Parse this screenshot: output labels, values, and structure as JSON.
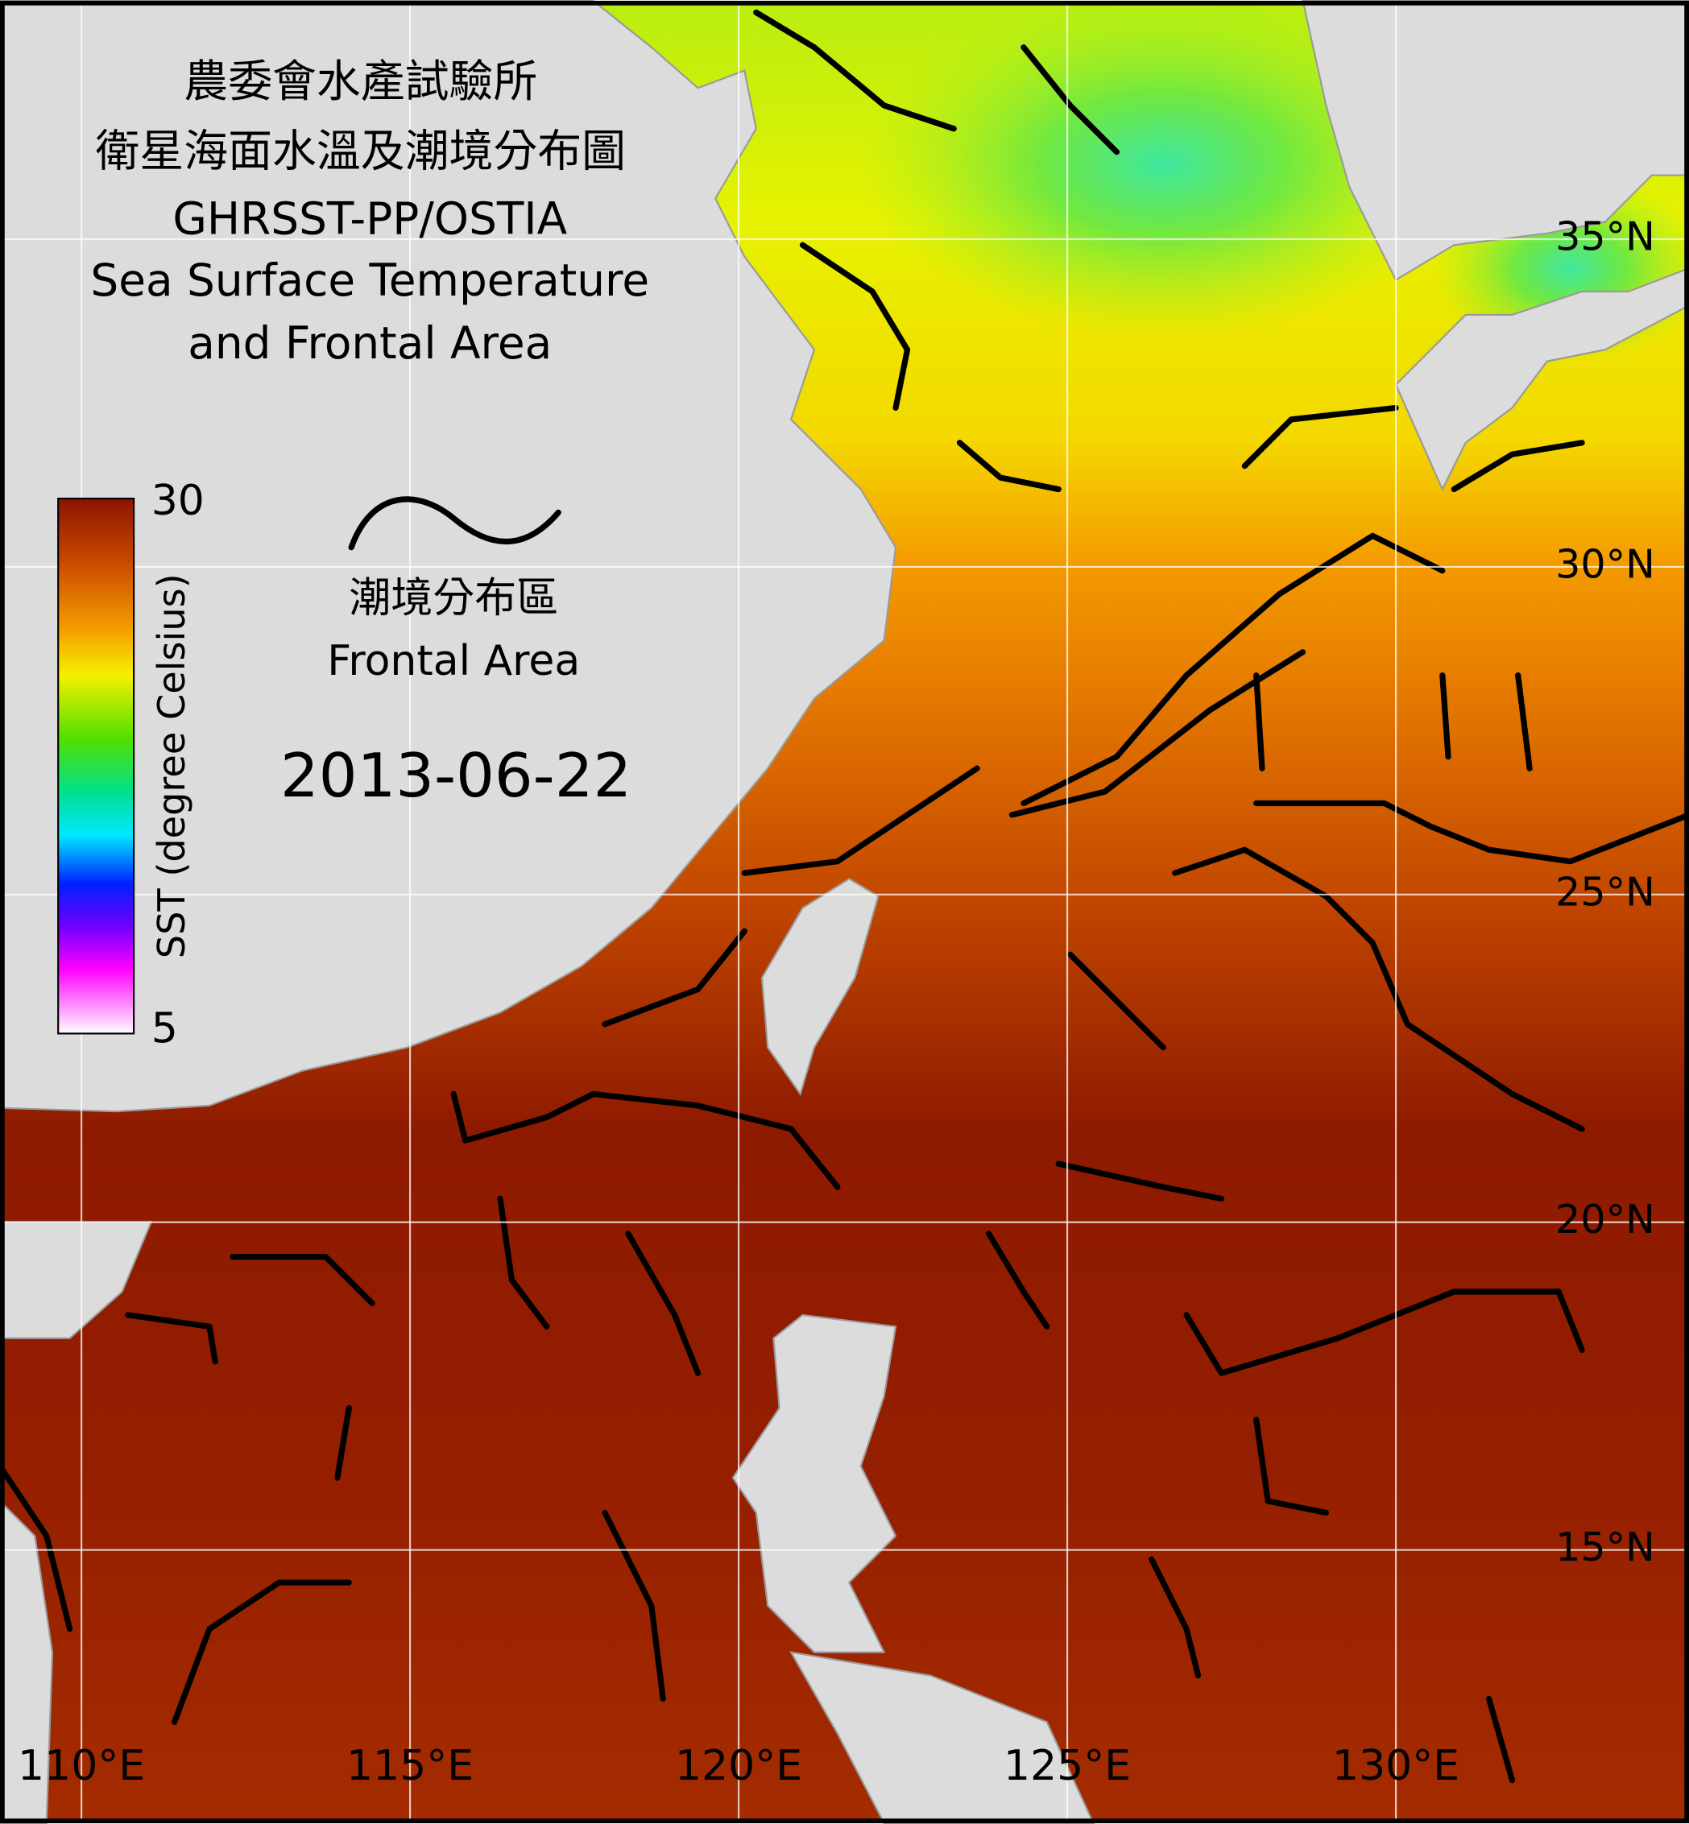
{
  "title": [
    "農委會水產試驗所",
    "衛星海面水溫及潮境分布圖",
    "GHRSST-PP/OSTIA",
    "Sea Surface Temperature",
    "and Frontal Area"
  ],
  "colorbar": {
    "label": "SST (degree Celsius)",
    "ticks": [
      30,
      5
    ]
  },
  "legend": {
    "label_zh": "潮境分布區",
    "label_en": "Frontal Area"
  },
  "date": "2013-06-22",
  "graticule": {
    "lat_labels": [
      "35°N",
      "30°N",
      "25°N",
      "20°N",
      "15°N"
    ],
    "lon_labels": [
      "110°E",
      "115°E",
      "120°E",
      "125°E",
      "130°E"
    ]
  }
}
